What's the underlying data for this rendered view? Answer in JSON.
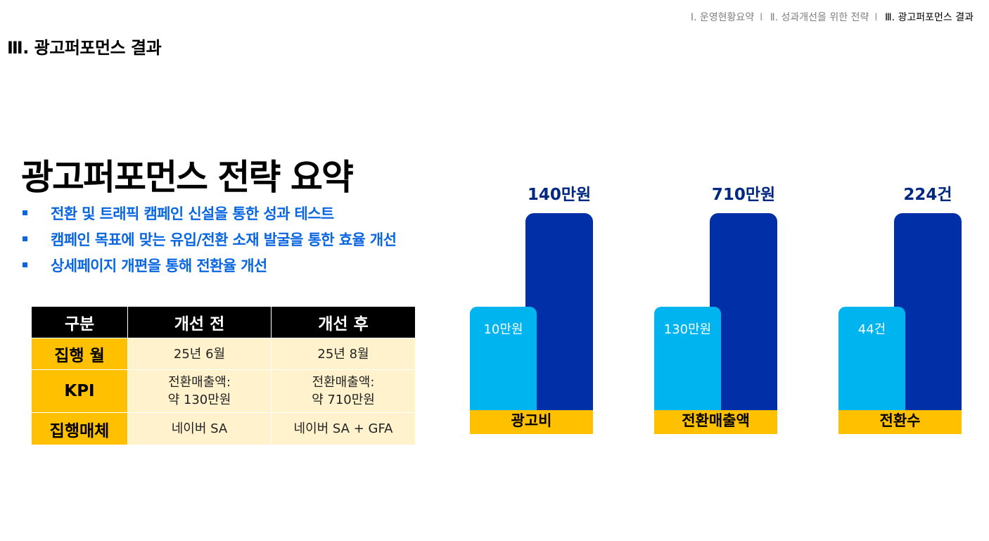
{
  "nav": {
    "items": [
      {
        "label": "Ⅰ. 운영현황요약"
      },
      {
        "label": "Ⅱ. 성과개선을 위한 전략"
      },
      {
        "label": "Ⅲ. 광고퍼포먼스 결과"
      }
    ],
    "separator": "I"
  },
  "section_title": "Ⅲ. 광고퍼포먼스 결과",
  "main_title": "광고퍼포먼스 전략 요약",
  "bullets": [
    "전환 및 트래픽 캠페인 신설을 통한 성과 테스트",
    "캠페인 목표에 맞는 유입/전환 소재 발굴을 통한 효율 개선",
    "상세페이지 개편을 통해 전환율 개선"
  ],
  "table": {
    "headers": [
      "구분",
      "개선 전",
      "개선 후"
    ],
    "rows": [
      {
        "label": "집행 월",
        "before": "25년 6월",
        "after": "25년 8월"
      },
      {
        "label": "KPI",
        "before": "전환매출액:\n약 130만원",
        "after": "전환매출액:\n약 710만원"
      },
      {
        "label": "집행매체",
        "before": "네이버 SA",
        "after": "네이버 SA + GFA"
      }
    ]
  },
  "colors": {
    "accent_blue": "#0a66e0",
    "bar_before": "#00b4f0",
    "bar_after": "#002fa7",
    "label_gold": "#ffc000",
    "cell_cream": "#fff2cc"
  },
  "chart_data": [
    {
      "type": "bar",
      "category": "광고비",
      "series": [
        {
          "name": "개선 전",
          "values": [
            10
          ],
          "label": "10만원"
        },
        {
          "name": "개선 후",
          "values": [
            140
          ],
          "label": "140만원"
        }
      ],
      "unit": "만원"
    },
    {
      "type": "bar",
      "category": "전환매출액",
      "series": [
        {
          "name": "개선 전",
          "values": [
            130
          ],
          "label": "130만원"
        },
        {
          "name": "개선 후",
          "values": [
            710
          ],
          "label": "710만원"
        }
      ],
      "unit": "만원"
    },
    {
      "type": "bar",
      "category": "전환수",
      "series": [
        {
          "name": "개선 전",
          "values": [
            44
          ],
          "label": "44건"
        },
        {
          "name": "개선 후",
          "values": [
            224
          ],
          "label": "224건"
        }
      ],
      "unit": "건"
    }
  ]
}
